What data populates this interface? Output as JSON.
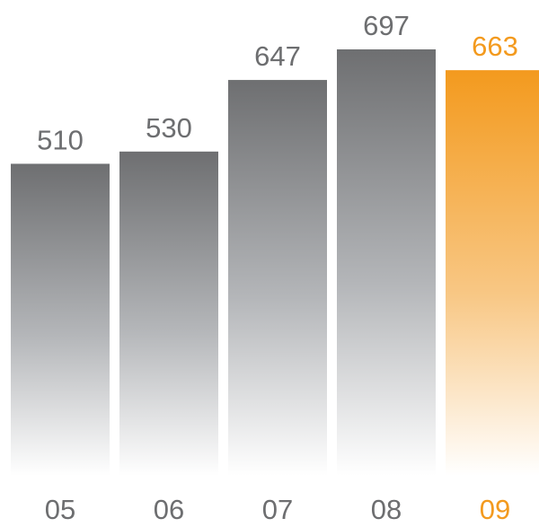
{
  "chart_data": {
    "type": "bar",
    "categories": [
      "05",
      "06",
      "07",
      "08",
      "09"
    ],
    "values": [
      510,
      530,
      647,
      697,
      663
    ],
    "highlight_index": 4,
    "title": "",
    "xlabel": "",
    "ylabel": "",
    "ylim": [
      0,
      697
    ],
    "grid": false,
    "legend": "none",
    "colors": {
      "bar_top": "#6e6f71",
      "bar_bottom": "#ffffff",
      "highlight_top": "#f39a1e",
      "highlight_bottom": "#ffffff",
      "label": "#6d6e70",
      "highlight_label": "#f39a1e"
    }
  }
}
